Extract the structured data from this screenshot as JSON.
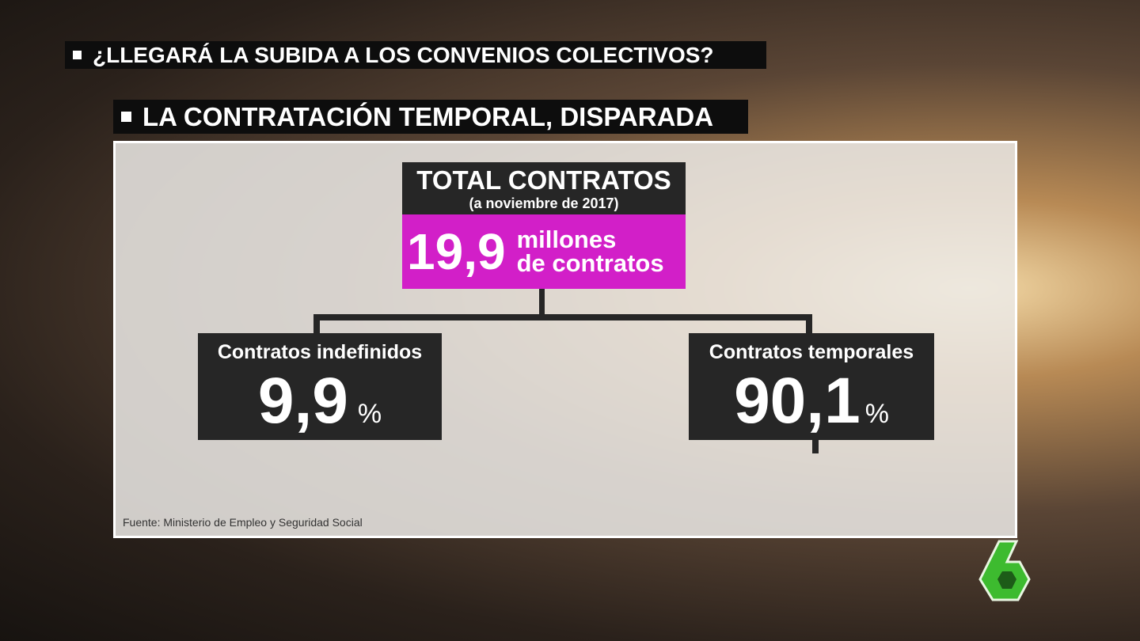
{
  "headlines": [
    "¿LLEGARÁ LA SUBIDA A LOS CONVENIOS COLECTIVOS?",
    "LA CONTRATACIÓN TEMPORAL, DISPARADA"
  ],
  "total": {
    "title": "TOTAL CONTRATOS",
    "subtitle": "(a noviembre de 2017)",
    "value": "19,9",
    "unit_lines": [
      "millones",
      "de contratos"
    ]
  },
  "branches": [
    {
      "label": "Contratos indefinidos",
      "value": "9,9",
      "unit": "%"
    },
    {
      "label": "Contratos temporales",
      "value": "90,1",
      "unit": "%"
    }
  ],
  "source": "Fuente: Ministerio de Empleo y Seguridad Social"
}
